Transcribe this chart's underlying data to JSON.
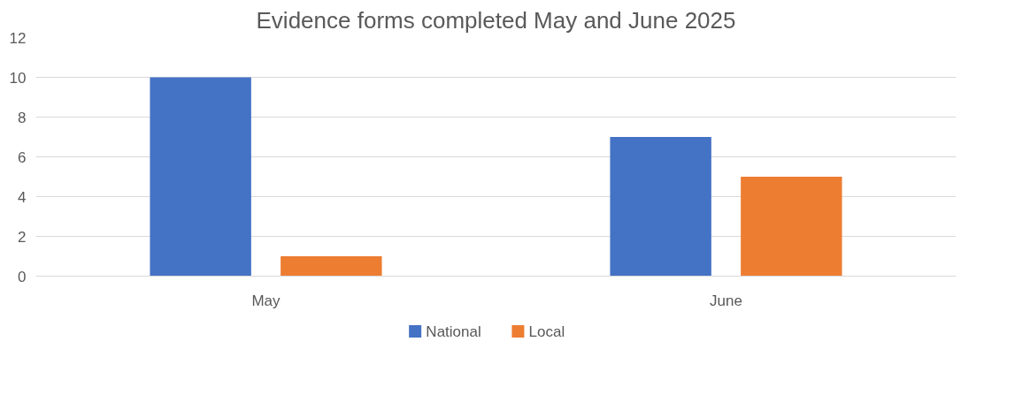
{
  "chart_data": {
    "type": "bar",
    "title": "Evidence forms completed May and June 2025",
    "categories": [
      "May",
      "June"
    ],
    "series": [
      {
        "name": "National",
        "color": "#4472c4",
        "values": [
          10,
          7
        ]
      },
      {
        "name": "Local",
        "color": "#ed7d31",
        "values": [
          1,
          5
        ]
      }
    ],
    "ylim": [
      0,
      12
    ],
    "yticks": [
      0,
      2,
      4,
      6,
      8,
      10,
      12
    ],
    "grid": "y",
    "legend": "bottom"
  }
}
